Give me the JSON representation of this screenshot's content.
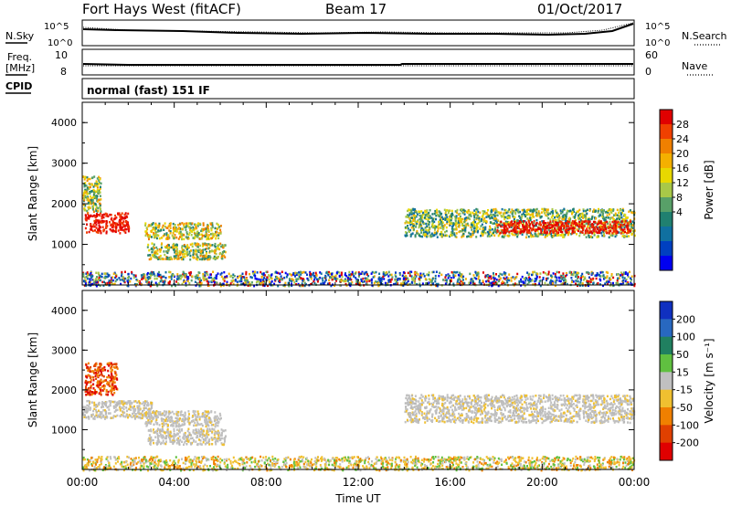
{
  "header": {
    "title": "Fort Hays West (fitACF)",
    "beam": "Beam 17",
    "date": "01/Oct/2017"
  },
  "summary": {
    "nsky_label": "N.Sky",
    "nsearch_label": "N.Search",
    "freq_label_line1": "Freq.",
    "freq_label_line2": "[MHz]",
    "nave_label": "Nave",
    "cpid_label": "CPID",
    "noise_ticks": [
      "10^5",
      "10^0"
    ],
    "freq_ticks": [
      "10",
      "8"
    ],
    "nave_ticks": [
      "60",
      "0"
    ],
    "cpid_text": "normal (fast) 151 IF"
  },
  "chart_data": [
    {
      "type": "heatmap",
      "name": "power-panel",
      "ylabel": "Slant Range [km]",
      "ylim": [
        0,
        4500
      ],
      "yticks": [
        1000,
        2000,
        3000,
        4000
      ],
      "colorbar": {
        "label": "Power [dB]",
        "ticks": [
          "28",
          "24",
          "20",
          "16",
          "12",
          "8",
          "4"
        ],
        "colors": [
          "#e00000",
          "#f04000",
          "#f08000",
          "#f4b000",
          "#e8d800",
          "#a8c848",
          "#58a068",
          "#208070",
          "#1070a0",
          "#0040c0",
          "#0000f0"
        ]
      },
      "regions": [
        {
          "t0": 0.1,
          "t1": 2.0,
          "r0": 1300,
          "r1": 1800,
          "level": "high"
        },
        {
          "t0": 0.0,
          "t1": 0.8,
          "r0": 1800,
          "r1": 2700,
          "level": "mid"
        },
        {
          "t0": 2.7,
          "t1": 6.0,
          "r0": 1150,
          "r1": 1550,
          "level": "mid"
        },
        {
          "t0": 2.8,
          "t1": 6.2,
          "r0": 650,
          "r1": 1050,
          "level": "mid"
        },
        {
          "t0": 14.0,
          "t1": 24.0,
          "r0": 1200,
          "r1": 1900,
          "level": "mixed"
        },
        {
          "t0": 18.0,
          "t1": 23.8,
          "r0": 1300,
          "r1": 1600,
          "level": "high"
        },
        {
          "t0": 0.0,
          "t1": 24.0,
          "r0": 0,
          "r1": 350,
          "level": "low"
        }
      ]
    },
    {
      "type": "heatmap",
      "name": "velocity-panel",
      "ylabel": "Slant Range [km]",
      "xlabel": "Time UT",
      "xticks": [
        "00:00",
        "04:00",
        "08:00",
        "12:00",
        "16:00",
        "20:00",
        "00:00"
      ],
      "xlim": [
        0,
        24
      ],
      "ylim": [
        0,
        4500
      ],
      "yticks": [
        1000,
        2000,
        3000,
        4000
      ],
      "colorbar": {
        "label": "Velocity [m s⁻¹]",
        "ticks": [
          "200",
          "100",
          "50",
          "15",
          "-15",
          "-50",
          "-100",
          "-200"
        ],
        "colors": [
          "#1030c0",
          "#2868c0",
          "#208060",
          "#60c040",
          "#c0c0c0",
          "#f0c030",
          "#f08000",
          "#e04000",
          "#e00000"
        ]
      },
      "regions": [
        {
          "t0": 0.1,
          "t1": 1.5,
          "r0": 1900,
          "r1": 2700,
          "level": "neg"
        },
        {
          "t0": 0.0,
          "t1": 3.0,
          "r0": 1300,
          "r1": 1750,
          "level": "zero"
        },
        {
          "t0": 2.7,
          "t1": 6.0,
          "r0": 1100,
          "r1": 1500,
          "level": "zero"
        },
        {
          "t0": 2.8,
          "t1": 6.2,
          "r0": 650,
          "r1": 1050,
          "level": "zero"
        },
        {
          "t0": 14.0,
          "t1": 24.0,
          "r0": 1200,
          "r1": 1900,
          "level": "zero"
        },
        {
          "t0": 0.0,
          "t1": 24.0,
          "r0": 0,
          "r1": 350,
          "level": "slowneg"
        }
      ]
    }
  ]
}
